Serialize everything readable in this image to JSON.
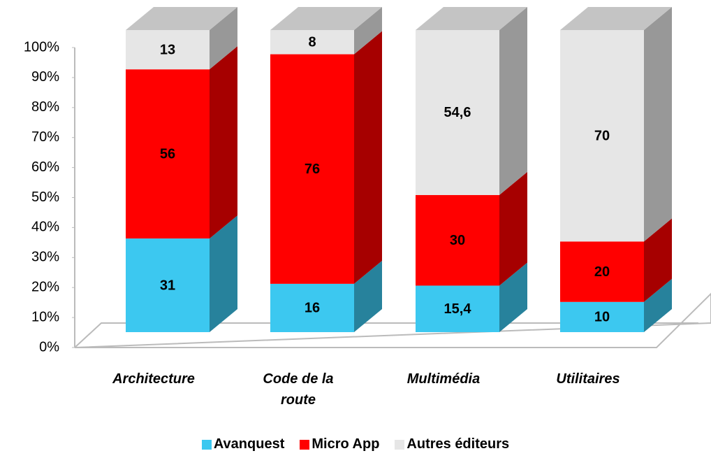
{
  "chart_data": {
    "type": "bar3d_stacked",
    "categories": [
      "Architecture",
      "Code de la route",
      "Multimédia",
      "Utilitaires"
    ],
    "series": [
      {
        "name": "Avanquest",
        "color": "#3cc8f0",
        "values": [
          31,
          16,
          15.4,
          10
        ],
        "value_labels": [
          "31",
          "16",
          "15,4",
          "10"
        ]
      },
      {
        "name": "Micro App",
        "color": "#ff0000",
        "values": [
          56,
          76,
          30,
          20
        ]
      },
      {
        "name": "Autres éditeurs",
        "color": "#e6e6e6",
        "values": [
          13,
          8,
          54.6,
          70
        ],
        "value_labels": [
          "13",
          "8",
          "54,6",
          "70"
        ]
      }
    ],
    "ylim": [
      0,
      100
    ],
    "yticks": [
      {
        "value": 0,
        "label": "0%"
      },
      {
        "value": 10,
        "label": "10%"
      },
      {
        "value": 20,
        "label": "20%"
      },
      {
        "value": 30,
        "label": "30%"
      },
      {
        "value": 40,
        "label": "40%"
      },
      {
        "value": 50,
        "label": "50%"
      },
      {
        "value": 60,
        "label": "60%"
      },
      {
        "value": 70,
        "label": "70%"
      },
      {
        "value": 80,
        "label": "80%"
      },
      {
        "value": 90,
        "label": "90%"
      },
      {
        "value": 100,
        "label": "100%"
      }
    ],
    "legend": "bottom"
  }
}
